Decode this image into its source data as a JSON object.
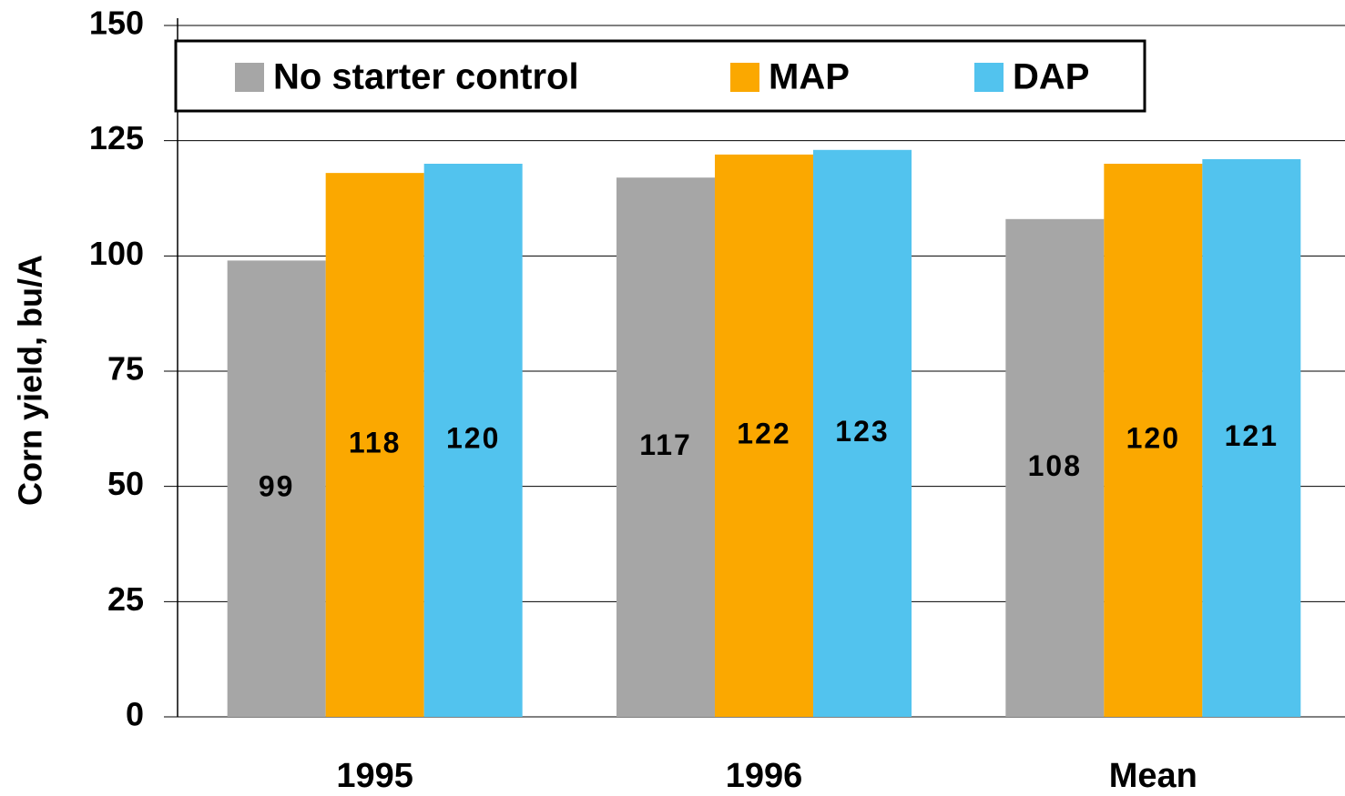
{
  "chart_data": {
    "type": "bar",
    "y_label": "Corn yield, bu/A",
    "categories": [
      "1995",
      "1996",
      "Mean"
    ],
    "series": [
      {
        "name": "No starter control",
        "color": "#a6a6a6",
        "values": [
          99,
          117,
          108
        ]
      },
      {
        "name": "MAP",
        "color": "#fba800",
        "values": [
          118,
          122,
          120
        ]
      },
      {
        "name": "DAP",
        "color": "#52c3ee",
        "values": [
          120,
          123,
          121
        ]
      }
    ],
    "ylim": [
      0,
      150
    ],
    "yticks": [
      0,
      25,
      50,
      75,
      100,
      125,
      150
    ],
    "grid": true,
    "legend": "top"
  }
}
